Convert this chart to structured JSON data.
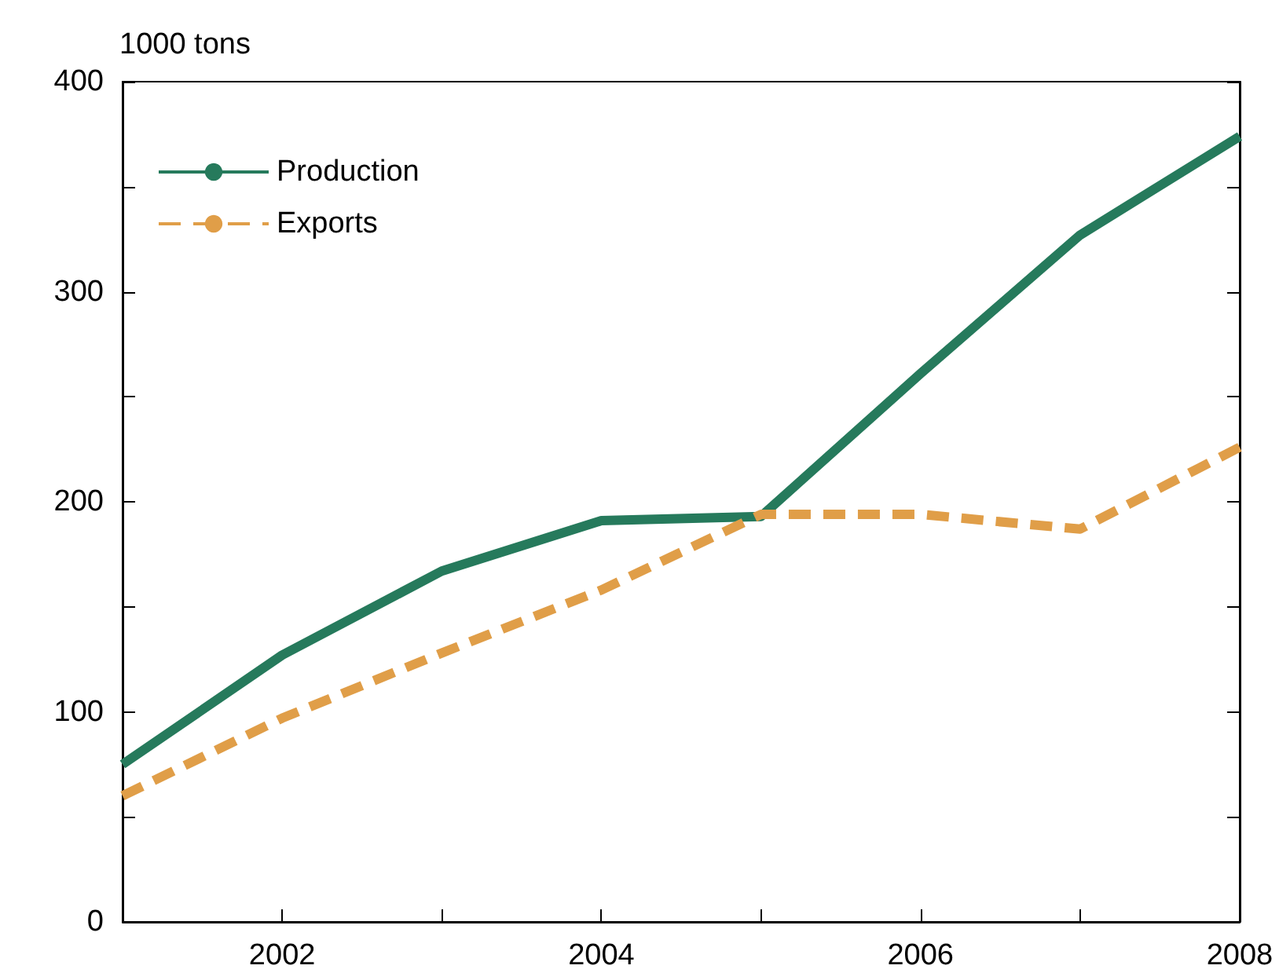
{
  "chart_data": {
    "type": "line",
    "ylabel": "1000 tons",
    "x": [
      2001,
      2002,
      2003,
      2004,
      2005,
      2006,
      2007,
      2008
    ],
    "series": [
      {
        "name": "Production",
        "color": "#267a5c",
        "line_style": "solid",
        "values": [
          75,
          127,
          167,
          191,
          193,
          261,
          327,
          374
        ]
      },
      {
        "name": "Exports",
        "color": "#e09e48",
        "line_style": "dashed",
        "values": [
          60,
          97,
          128,
          158,
          194,
          194,
          187,
          226
        ]
      }
    ],
    "xlim": [
      2001,
      2008
    ],
    "xticks": [
      {
        "value": 2001,
        "label": null
      },
      2002,
      {
        "value": 2003,
        "label": null
      },
      2004,
      {
        "value": 2005,
        "label": null
      },
      2006,
      {
        "value": 2007,
        "label": null
      },
      2008
    ],
    "ylim": [
      0,
      400
    ],
    "yticks": [
      0,
      {
        "value": 50,
        "label": null
      },
      100,
      {
        "value": 150,
        "label": null
      },
      200,
      {
        "value": 250,
        "label": null
      },
      300,
      {
        "value": 350,
        "label": null
      },
      400
    ],
    "grid": false,
    "legend": "top left",
    "marker": "none"
  }
}
